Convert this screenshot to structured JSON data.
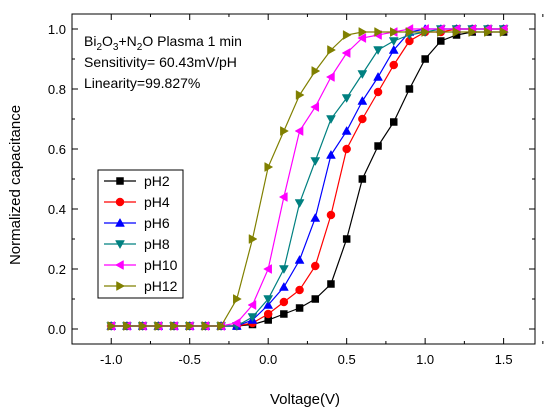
{
  "chart_data": {
    "type": "line",
    "xlabel": "Voltage(V)",
    "ylabel": "Normalized capacitance",
    "xlim": [
      -1.25,
      1.7
    ],
    "ylim": [
      -0.05,
      1.05
    ],
    "xticks": [
      -1.0,
      -0.5,
      0.0,
      0.5,
      1.0,
      1.5
    ],
    "xtick_labels": [
      "-1.0",
      "-0.5",
      "0.0",
      "0.5",
      "1.0",
      "1.5"
    ],
    "yticks": [
      0.0,
      0.2,
      0.4,
      0.6,
      0.8,
      1.0
    ],
    "ytick_labels": [
      "0.0",
      "0.2",
      "0.4",
      "0.6",
      "0.8",
      "1.0"
    ],
    "annotations": {
      "title_parts": [
        {
          "text": "Bi",
          "sub": false
        },
        {
          "text": "2",
          "sub": true
        },
        {
          "text": "O",
          "sub": false
        },
        {
          "text": "3",
          "sub": true
        },
        {
          "text": "+N",
          "sub": false
        },
        {
          "text": "2",
          "sub": true
        },
        {
          "text": "O Plasma 1 min",
          "sub": false
        }
      ],
      "sensitivity": "Sensitivity= 60.43mV/pH",
      "linearity": "Linearity=99.827%"
    },
    "legend_position": "left-middle",
    "grid": false,
    "x": [
      -1.0,
      -0.9,
      -0.8,
      -0.7,
      -0.6,
      -0.5,
      -0.4,
      -0.3,
      -0.2,
      -0.1,
      0.0,
      0.1,
      0.2,
      0.3,
      0.4,
      0.5,
      0.6,
      0.7,
      0.8,
      0.9,
      1.0,
      1.1,
      1.2,
      1.3,
      1.4,
      1.5
    ],
    "series": [
      {
        "name": "pH2",
        "color": "#000000",
        "marker": "square",
        "values": [
          0.01,
          0.01,
          0.01,
          0.01,
          0.01,
          0.01,
          0.01,
          0.01,
          0.01,
          0.015,
          0.03,
          0.05,
          0.07,
          0.1,
          0.15,
          0.3,
          0.5,
          0.61,
          0.69,
          0.8,
          0.9,
          0.96,
          0.98,
          0.99,
          0.99,
          0.99
        ]
      },
      {
        "name": "pH4",
        "color": "#ff0000",
        "marker": "circle",
        "values": [
          0.01,
          0.01,
          0.01,
          0.01,
          0.01,
          0.01,
          0.01,
          0.01,
          0.01,
          0.02,
          0.05,
          0.09,
          0.13,
          0.21,
          0.38,
          0.6,
          0.7,
          0.79,
          0.88,
          0.96,
          0.99,
          0.99,
          1.0,
          1.0,
          1.0,
          1.0
        ]
      },
      {
        "name": "pH6",
        "color": "#0000ff",
        "marker": "triangle-up",
        "values": [
          0.01,
          0.01,
          0.01,
          0.01,
          0.01,
          0.01,
          0.01,
          0.01,
          0.01,
          0.03,
          0.08,
          0.14,
          0.23,
          0.37,
          0.58,
          0.66,
          0.76,
          0.84,
          0.93,
          0.99,
          1.0,
          1.0,
          1.0,
          1.0,
          1.0,
          1.0
        ]
      },
      {
        "name": "pH8",
        "color": "#008080",
        "marker": "triangle-down",
        "values": [
          0.01,
          0.01,
          0.01,
          0.01,
          0.01,
          0.01,
          0.01,
          0.01,
          0.01,
          0.04,
          0.1,
          0.2,
          0.42,
          0.56,
          0.7,
          0.77,
          0.85,
          0.93,
          0.96,
          0.98,
          0.99,
          1.0,
          1.0,
          1.0,
          1.0,
          1.0
        ]
      },
      {
        "name": "pH10",
        "color": "#ff00ff",
        "marker": "triangle-left",
        "values": [
          0.01,
          0.01,
          0.01,
          0.01,
          0.01,
          0.01,
          0.01,
          0.01,
          0.02,
          0.08,
          0.2,
          0.44,
          0.66,
          0.74,
          0.84,
          0.92,
          0.97,
          0.98,
          0.99,
          1.0,
          1.0,
          1.0,
          1.0,
          1.0,
          1.0,
          1.0
        ]
      },
      {
        "name": "pH12",
        "color": "#808000",
        "marker": "triangle-right",
        "values": [
          0.01,
          0.01,
          0.01,
          0.01,
          0.01,
          0.01,
          0.01,
          0.01,
          0.1,
          0.3,
          0.54,
          0.66,
          0.78,
          0.86,
          0.93,
          0.98,
          0.99,
          0.99,
          0.99,
          0.99,
          0.99,
          0.99,
          0.99,
          0.99,
          0.99,
          0.99
        ]
      }
    ]
  }
}
